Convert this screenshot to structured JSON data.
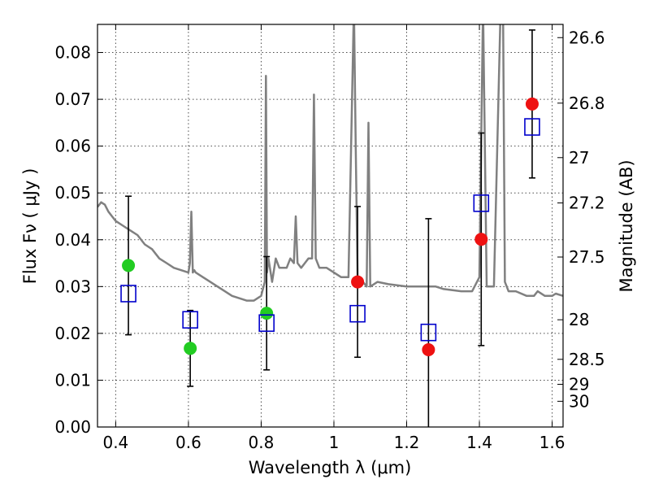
{
  "chart_data": {
    "type": "scatter",
    "xlabel": "Wavelength  λ (μm)",
    "ylabel": "Flux  Fν  ( μJy )",
    "ylabel_right": "Magnitude (AB)",
    "xlim": [
      0.35,
      1.63
    ],
    "ylim": [
      0.0,
      0.086
    ],
    "grid": true,
    "x_ticks": [
      0.4,
      0.6,
      0.8,
      1.0,
      1.2,
      1.4,
      1.6
    ],
    "x_tick_labels": [
      "0.4",
      "0.6",
      "0.8",
      "1",
      "1.2",
      "1.4",
      "1.6"
    ],
    "y_ticks": [
      0.0,
      0.01,
      0.02,
      0.03,
      0.04,
      0.05,
      0.06,
      0.07,
      0.08
    ],
    "y_tick_labels": [
      "0.00",
      "0.01",
      "0.02",
      "0.03",
      "0.04",
      "0.05",
      "0.06",
      "0.07",
      "0.08"
    ],
    "right_ticks": [
      {
        "mag": 26.6,
        "label": "26.6"
      },
      {
        "mag": 26.8,
        "label": "26.8"
      },
      {
        "mag": 27.0,
        "label": "27"
      },
      {
        "mag": 27.2,
        "label": "27.2"
      },
      {
        "mag": 27.5,
        "label": "27.5"
      },
      {
        "mag": 28.0,
        "label": "28"
      },
      {
        "mag": 28.5,
        "label": "28.5"
      },
      {
        "mag": 29.0,
        "label": "29"
      },
      {
        "mag": 30.0,
        "label": "30"
      }
    ],
    "colors": {
      "model": "#808080",
      "detections": "#22cc22",
      "nondetections": "#ee1111",
      "model_photometry": "#0000cc",
      "errorbar": "#000000"
    },
    "model_spectrum": {
      "x": [
        0.35,
        0.36,
        0.37,
        0.38,
        0.39,
        0.4,
        0.42,
        0.44,
        0.46,
        0.48,
        0.5,
        0.52,
        0.54,
        0.56,
        0.58,
        0.6,
        0.604,
        0.608,
        0.612,
        0.616,
        0.62,
        0.64,
        0.66,
        0.68,
        0.7,
        0.72,
        0.74,
        0.76,
        0.78,
        0.8,
        0.81,
        0.813,
        0.816,
        0.82,
        0.83,
        0.84,
        0.85,
        0.86,
        0.87,
        0.88,
        0.89,
        0.895,
        0.9,
        0.91,
        0.92,
        0.93,
        0.94,
        0.945,
        0.95,
        0.96,
        0.98,
        1.0,
        1.02,
        1.04,
        1.055,
        1.06,
        1.065,
        1.07,
        1.08,
        1.09,
        1.095,
        1.1,
        1.12,
        1.15,
        1.2,
        1.25,
        1.28,
        1.3,
        1.35,
        1.38,
        1.4,
        1.41,
        1.42,
        1.44,
        1.46,
        1.465,
        1.47,
        1.48,
        1.5,
        1.53,
        1.55,
        1.56,
        1.58,
        1.6,
        1.61,
        1.63
      ],
      "y": [
        0.047,
        0.048,
        0.0475,
        0.046,
        0.045,
        0.044,
        0.043,
        0.042,
        0.041,
        0.039,
        0.038,
        0.036,
        0.035,
        0.034,
        0.0335,
        0.033,
        0.035,
        0.046,
        0.033,
        0.0335,
        0.033,
        0.032,
        0.031,
        0.03,
        0.029,
        0.028,
        0.0275,
        0.027,
        0.027,
        0.028,
        0.031,
        0.075,
        0.033,
        0.036,
        0.031,
        0.036,
        0.034,
        0.034,
        0.034,
        0.036,
        0.035,
        0.045,
        0.035,
        0.034,
        0.035,
        0.036,
        0.036,
        0.071,
        0.036,
        0.034,
        0.034,
        0.033,
        0.032,
        0.032,
        0.09,
        0.06,
        0.032,
        0.031,
        0.031,
        0.03,
        0.065,
        0.03,
        0.031,
        0.0305,
        0.03,
        0.03,
        0.03,
        0.0295,
        0.029,
        0.029,
        0.032,
        0.09,
        0.03,
        0.03,
        0.095,
        0.09,
        0.031,
        0.029,
        0.029,
        0.028,
        0.028,
        0.029,
        0.028,
        0.028,
        0.0285,
        0.028
      ]
    },
    "series": [
      {
        "type": "detections",
        "x": [
          0.435,
          0.605,
          0.815
        ],
        "y": [
          0.0345,
          0.0168,
          0.0243
        ],
        "yerr": [
          0.0148,
          0.0081,
          0.0121
        ]
      },
      {
        "type": "nondetections",
        "x": [
          1.065,
          1.26,
          1.405,
          1.545
        ],
        "y": [
          0.031,
          0.0165,
          0.0401,
          0.069
        ],
        "yerr": [
          0.0161,
          0.028,
          0.0227,
          0.0158
        ]
      },
      {
        "type": "model_photometry",
        "x": [
          0.435,
          0.605,
          0.815,
          1.065,
          1.26,
          1.405,
          1.545
        ],
        "y": [
          0.0285,
          0.0229,
          0.0222,
          0.0242,
          0.0202,
          0.0478,
          0.0641
        ]
      }
    ]
  }
}
